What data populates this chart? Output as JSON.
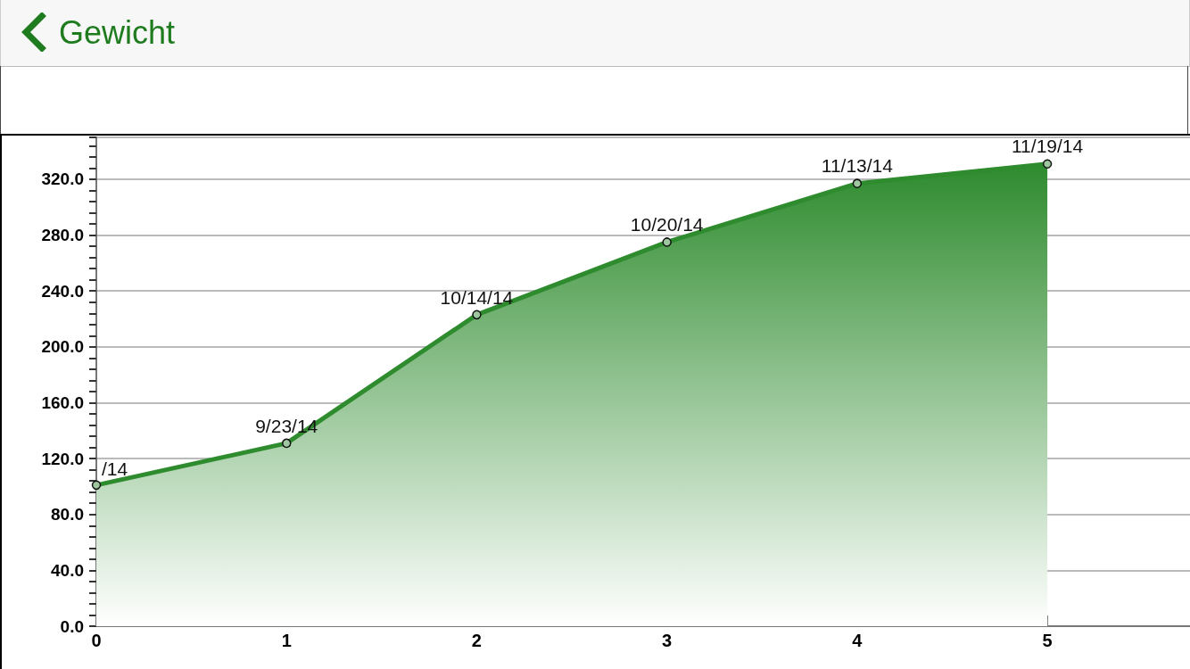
{
  "chart_data": {
    "type": "area",
    "title": "Gewicht",
    "x": [
      0,
      1,
      2,
      3,
      4,
      5
    ],
    "series": [
      {
        "color": "#2e8b2e",
        "values": [
          101,
          131,
          223,
          275,
          317,
          331
        ],
        "value_labels": [
          null,
          "9/23/14",
          "10/14/14",
          "10/20/14",
          "11/13/14",
          "11/19/14"
        ]
      }
    ],
    "xlim": [
      0,
      5.75
    ],
    "xticks": [
      0,
      1,
      2,
      3,
      4,
      5
    ],
    "ylim": [
      0,
      350
    ],
    "yticks": [
      {
        "value": 0,
        "label": "0.0"
      },
      {
        "value": 40,
        "label": "40.0"
      },
      {
        "value": 80,
        "label": "80.0"
      },
      {
        "value": 120,
        "label": "120.0"
      },
      {
        "value": 160,
        "label": "160.0"
      },
      {
        "value": 200,
        "label": "200.0"
      },
      {
        "value": 240,
        "label": "240.0"
      },
      {
        "value": 280,
        "label": "280.0"
      },
      {
        "value": 320,
        "label": "320.0"
      }
    ],
    "grid": "y",
    "marker": "circle",
    "annotations": [
      {
        "text": "/14",
        "x": 0,
        "y": 101
      }
    ]
  }
}
